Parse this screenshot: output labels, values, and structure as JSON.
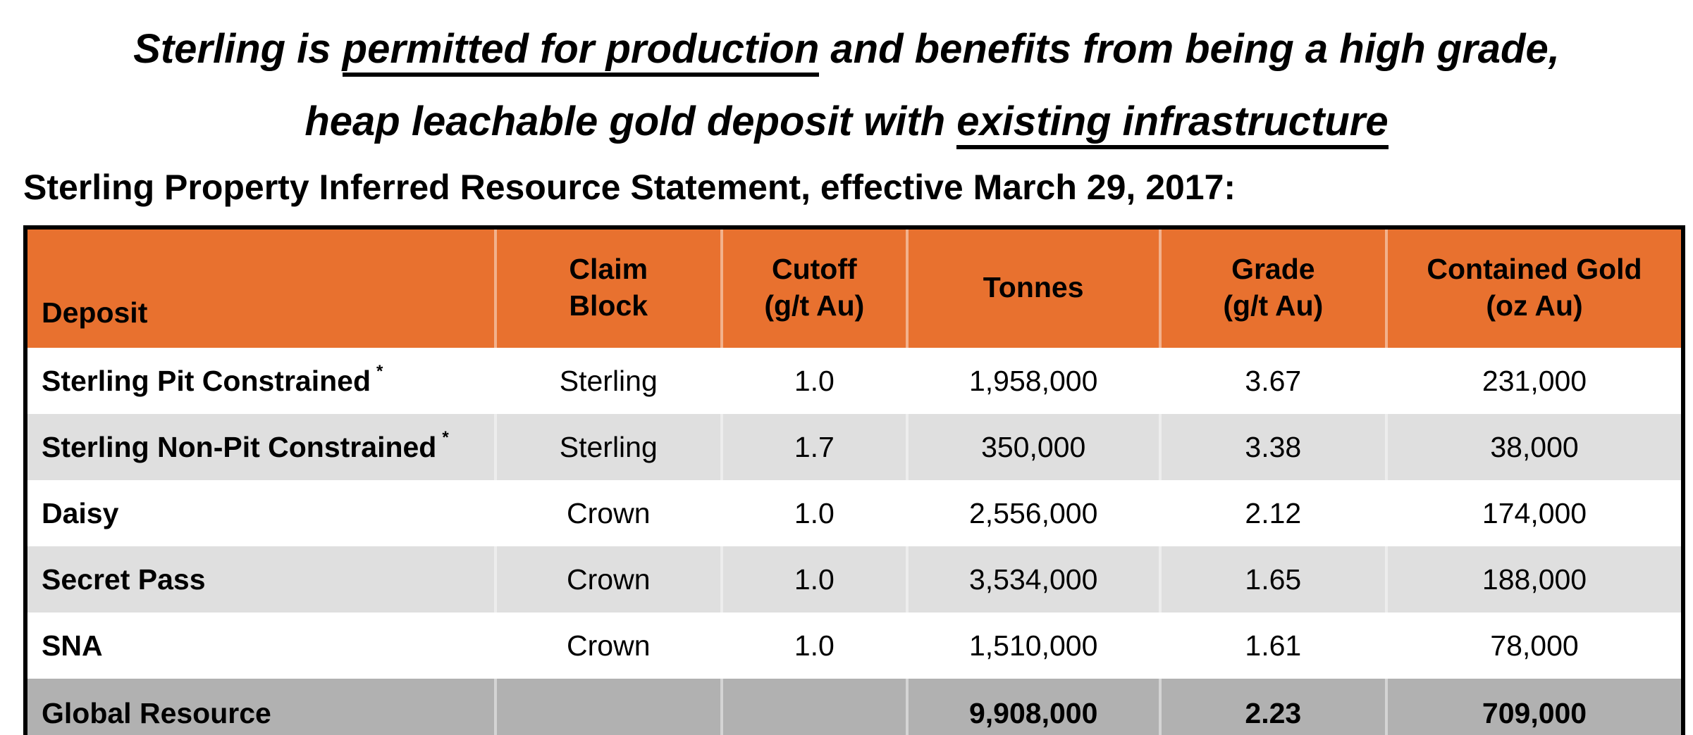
{
  "title": {
    "line1": {
      "pre": "Sterling is ",
      "underlined": "permitted for production",
      "post": " and benefits from being a high grade,"
    },
    "line2": {
      "pre": "heap leachable gold deposit with ",
      "underlined": "existing infrastructure",
      "post": ""
    }
  },
  "subtitle": "Sterling Property Inferred Resource Statement, effective March 29, 2017:",
  "colors": {
    "header_bg": "#E8712F",
    "alt_row_bg": "#DFDFDF",
    "total_row_bg": "#B1B1B1",
    "border": "#000000"
  },
  "table": {
    "columns": [
      {
        "line1": "Deposit",
        "line2": ""
      },
      {
        "line1": "Claim",
        "line2": "Block"
      },
      {
        "line1": "Cutoff",
        "line2": "(g/t Au)"
      },
      {
        "line1": "Tonnes",
        "line2": ""
      },
      {
        "line1": "Grade",
        "line2": "(g/t Au)"
      },
      {
        "line1": "Contained Gold",
        "line2": "(oz Au)"
      }
    ],
    "rows": [
      {
        "deposit": "Sterling Pit Constrained",
        "note": "*",
        "claim_block": "Sterling",
        "cutoff": "1.0",
        "tonnes": "1,958,000",
        "grade": "3.67",
        "contained_gold": "231,000"
      },
      {
        "deposit": "Sterling Non-Pit Constrained",
        "note": "*",
        "claim_block": "Sterling",
        "cutoff": "1.7",
        "tonnes": "350,000",
        "grade": "3.38",
        "contained_gold": "38,000"
      },
      {
        "deposit": "Daisy",
        "note": "",
        "claim_block": "Crown",
        "cutoff": "1.0",
        "tonnes": "2,556,000",
        "grade": "2.12",
        "contained_gold": "174,000"
      },
      {
        "deposit": "Secret Pass",
        "note": "",
        "claim_block": "Crown",
        "cutoff": "1.0",
        "tonnes": "3,534,000",
        "grade": "1.65",
        "contained_gold": "188,000"
      },
      {
        "deposit": "SNA",
        "note": "",
        "claim_block": "Crown",
        "cutoff": "1.0",
        "tonnes": "1,510,000",
        "grade": "1.61",
        "contained_gold": "78,000"
      }
    ],
    "total_row": {
      "deposit": "Global Resource",
      "claim_block": "",
      "cutoff": "",
      "tonnes": "9,908,000",
      "grade": "2.23",
      "contained_gold": "709,000"
    }
  }
}
